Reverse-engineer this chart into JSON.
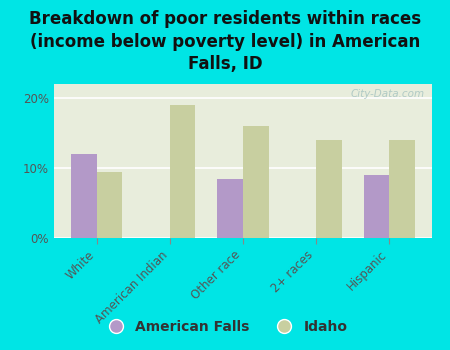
{
  "title": "Breakdown of poor residents within races\n(income below poverty level) in American\nFalls, ID",
  "categories": [
    "White",
    "American Indian",
    "Other race",
    "2+ races",
    "Hispanic"
  ],
  "american_falls": [
    12.0,
    0,
    8.5,
    0,
    9.0
  ],
  "idaho": [
    9.5,
    19.0,
    16.0,
    14.0,
    14.0
  ],
  "af_color": "#b399c8",
  "idaho_color": "#c8cfa0",
  "background_color": "#00e5e5",
  "plot_bg_color": "#e8eddc",
  "grid_color": "#ffffff",
  "ylim": [
    0,
    22
  ],
  "yticks": [
    0,
    10,
    20
  ],
  "bar_width": 0.35,
  "title_fontsize": 12,
  "tick_fontsize": 8.5,
  "legend_fontsize": 10,
  "watermark": "City-Data.com"
}
